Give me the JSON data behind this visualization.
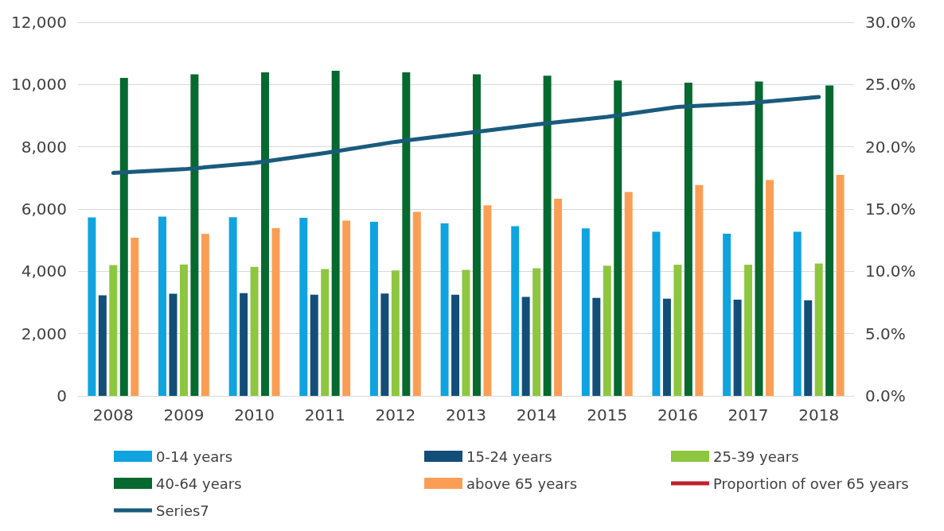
{
  "chart_data": {
    "type": "bar",
    "categories": [
      "2008",
      "2009",
      "2010",
      "2011",
      "2012",
      "2013",
      "2014",
      "2015",
      "2016",
      "2017",
      "2018"
    ],
    "series": [
      {
        "name": "0-14 years",
        "color": "#0fa3e0",
        "values": [
          5730,
          5760,
          5740,
          5720,
          5590,
          5540,
          5450,
          5380,
          5270,
          5210,
          5270
        ]
      },
      {
        "name": "15-24 years",
        "color": "#124e78",
        "values": [
          3230,
          3280,
          3300,
          3250,
          3290,
          3250,
          3180,
          3150,
          3120,
          3090,
          3070
        ]
      },
      {
        "name": "25-39 years",
        "color": "#8dc63f",
        "values": [
          4200,
          4220,
          4140,
          4070,
          4030,
          4050,
          4100,
          4180,
          4210,
          4210,
          4250
        ]
      },
      {
        "name": "40-64 years",
        "color": "#06692f",
        "values": [
          10210,
          10330,
          10390,
          10440,
          10390,
          10330,
          10280,
          10130,
          10060,
          10100,
          9970
        ]
      },
      {
        "name": "above 65 years",
        "color": "#fb9e55",
        "values": [
          5080,
          5200,
          5390,
          5630,
          5910,
          6120,
          6330,
          6550,
          6770,
          6930,
          7100
        ]
      },
      {
        "name": "Proportion of over 65 years",
        "type": "line",
        "axis": "y2",
        "color": "#c0202e",
        "values": [
          null,
          null,
          null,
          null,
          null,
          null,
          null,
          null,
          null,
          null,
          null
        ]
      },
      {
        "name": "Series7",
        "type": "line",
        "axis": "y2",
        "color": "#1a5b7c",
        "values": [
          17.9,
          18.2,
          18.7,
          19.5,
          20.4,
          21.1,
          21.8,
          22.4,
          23.2,
          23.5,
          24.0
        ]
      }
    ],
    "ylim": [
      0,
      12000
    ],
    "yticks": [
      {
        "value": 0,
        "label": "0"
      },
      {
        "value": 2000,
        "label": "2,000"
      },
      {
        "value": 4000,
        "label": "4,000"
      },
      {
        "value": 6000,
        "label": "6,000"
      },
      {
        "value": 8000,
        "label": "8,000"
      },
      {
        "value": 10000,
        "label": "10,000"
      },
      {
        "value": 12000,
        "label": "12,000"
      }
    ],
    "y2lim": [
      0,
      30
    ],
    "y2ticks": [
      {
        "value": 0,
        "label": "0.0%"
      },
      {
        "value": 5,
        "label": "5.0%"
      },
      {
        "value": 10,
        "label": "10.0%"
      },
      {
        "value": 15,
        "label": "15.0%"
      },
      {
        "value": 20,
        "label": "20.0%"
      },
      {
        "value": 25,
        "label": "25.0%"
      },
      {
        "value": 30,
        "label": "30.0%"
      }
    ],
    "grid": "y",
    "legend": "bottom",
    "marker": "none",
    "line_style": "solid"
  }
}
